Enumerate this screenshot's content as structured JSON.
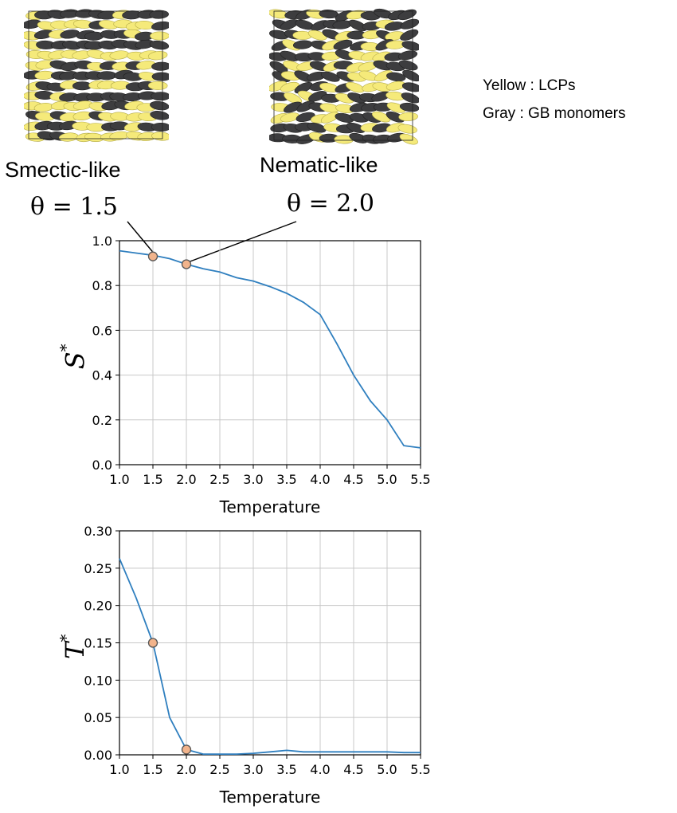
{
  "snapshots": [
    {
      "name": "Smectic-like",
      "theta": "θ = 1.5"
    },
    {
      "name": "Nematic-like",
      "theta": "θ = 2.0"
    }
  ],
  "legend": {
    "yellow": "Yellow : LCPs",
    "gray": "Gray : GB monomers"
  },
  "colors": {
    "line": "#2f7fbf",
    "marker_fill": "#f2b48c",
    "marker_edge": "#555555",
    "yellow": "#f5ea7a",
    "gray": "#3d3d3f",
    "grid": "#c8c8c8"
  },
  "chart_data": [
    {
      "type": "line",
      "xlabel": "Temperature",
      "ylabel": "S",
      "ylabel_sup": "*",
      "xlim": [
        1.0,
        5.5
      ],
      "ylim": [
        0.0,
        1.0
      ],
      "xticks": [
        "1.0",
        "1.5",
        "2.0",
        "2.5",
        "3.0",
        "3.5",
        "4.0",
        "4.5",
        "5.0",
        "5.5"
      ],
      "yticks": [
        "0.0",
        "0.2",
        "0.4",
        "0.6",
        "0.8",
        "1.0"
      ],
      "grid": true,
      "x": [
        1.0,
        1.25,
        1.5,
        1.75,
        2.0,
        2.25,
        2.5,
        2.75,
        3.0,
        3.25,
        3.5,
        3.75,
        4.0,
        4.25,
        4.5,
        4.75,
        5.0,
        5.25,
        5.5
      ],
      "y": [
        0.955,
        0.945,
        0.935,
        0.92,
        0.895,
        0.875,
        0.86,
        0.835,
        0.82,
        0.795,
        0.765,
        0.725,
        0.67,
        0.54,
        0.4,
        0.285,
        0.2,
        0.085,
        0.075
      ],
      "markers": [
        {
          "x": 1.5,
          "y": 0.93
        },
        {
          "x": 2.0,
          "y": 0.895
        }
      ]
    },
    {
      "type": "line",
      "xlabel": "Temperature",
      "ylabel": "T",
      "ylabel_sup": "*",
      "xlim": [
        1.0,
        5.5
      ],
      "ylim": [
        0.0,
        0.3
      ],
      "xticks": [
        "1.0",
        "1.5",
        "2.0",
        "2.5",
        "3.0",
        "3.5",
        "4.0",
        "4.5",
        "5.0",
        "5.5"
      ],
      "yticks": [
        "0.00",
        "0.05",
        "0.10",
        "0.15",
        "0.20",
        "0.25",
        "0.30"
      ],
      "grid": true,
      "x": [
        1.0,
        1.25,
        1.5,
        1.75,
        2.0,
        2.25,
        2.5,
        2.75,
        3.0,
        3.25,
        3.5,
        3.75,
        4.0,
        4.25,
        4.5,
        4.75,
        5.0,
        5.25,
        5.5
      ],
      "y": [
        0.263,
        0.21,
        0.15,
        0.05,
        0.007,
        0.001,
        0.001,
        0.001,
        0.002,
        0.004,
        0.006,
        0.004,
        0.004,
        0.004,
        0.004,
        0.004,
        0.004,
        0.003,
        0.003
      ],
      "markers": [
        {
          "x": 1.5,
          "y": 0.15
        },
        {
          "x": 2.0,
          "y": 0.007
        }
      ]
    }
  ]
}
